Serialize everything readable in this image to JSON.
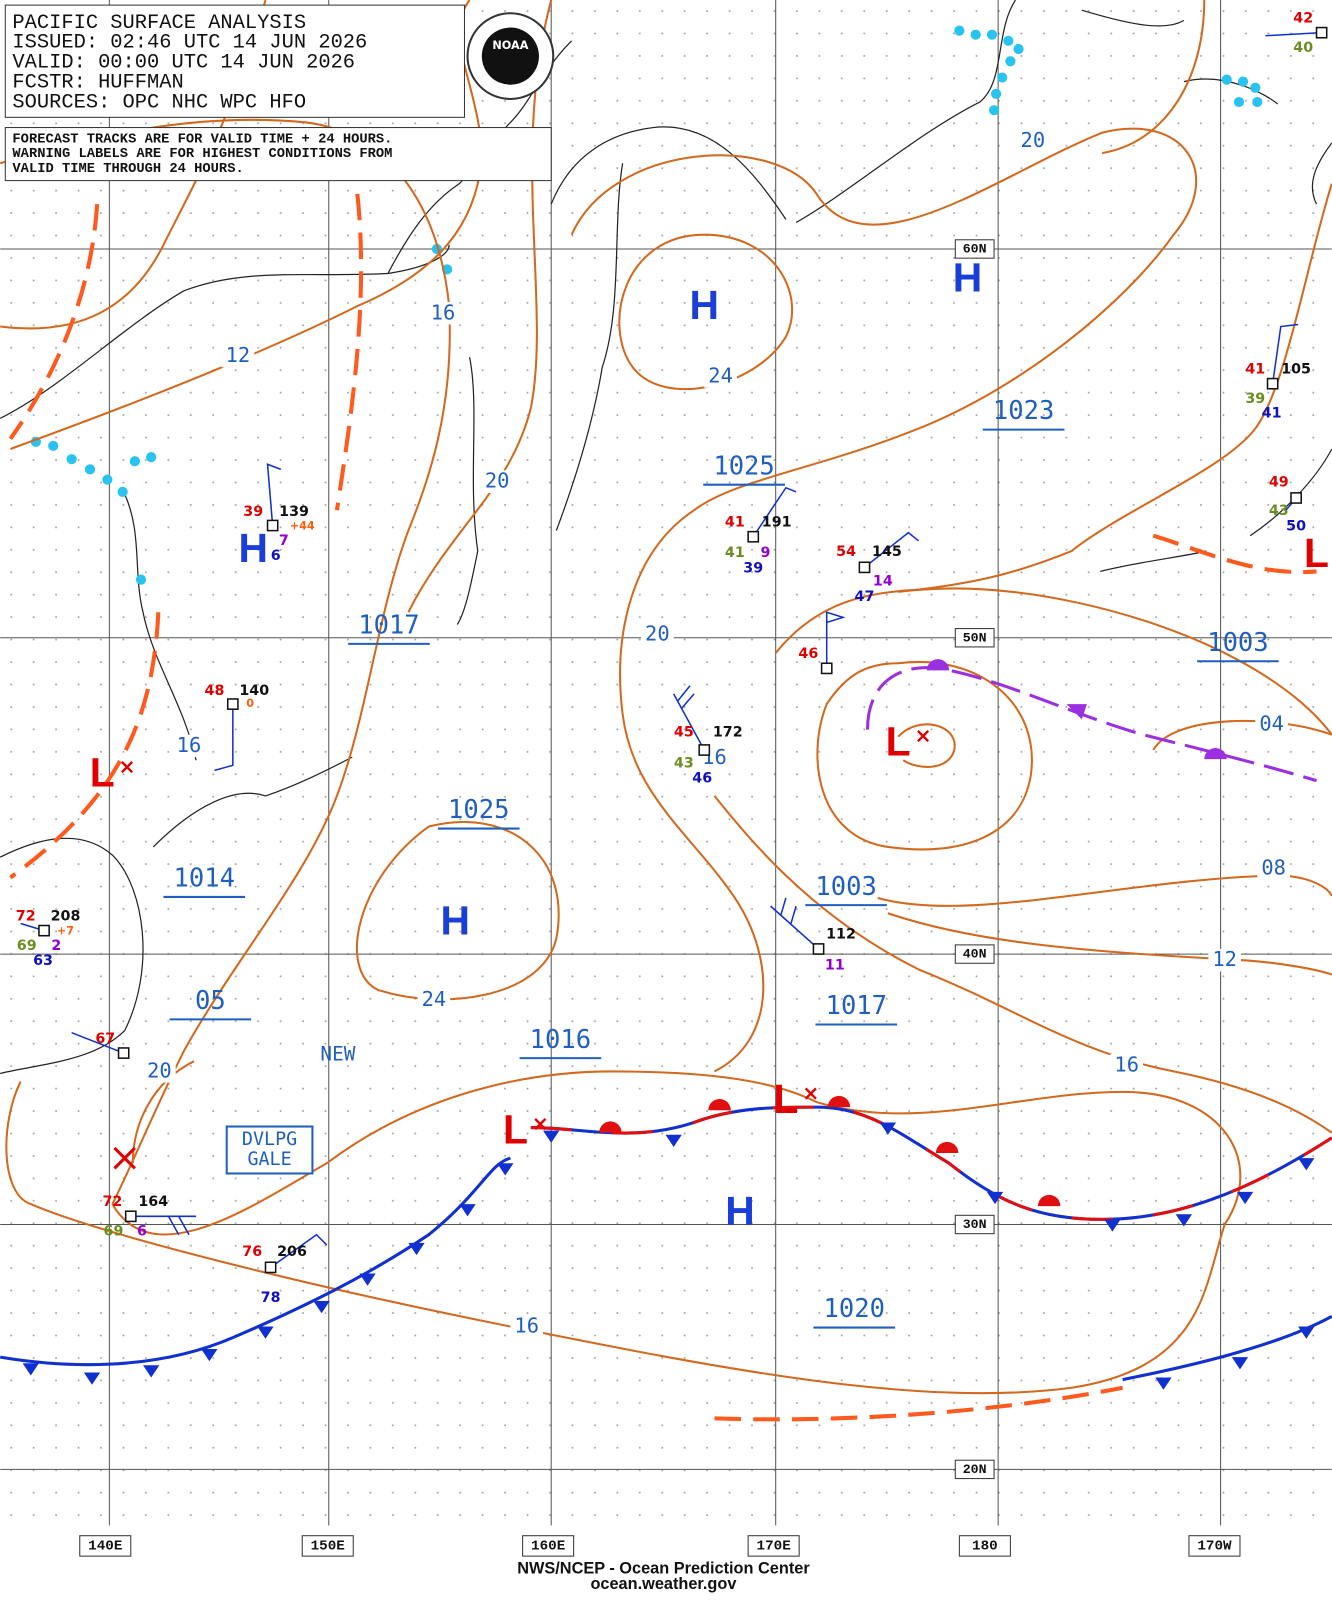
{
  "header": {
    "lines": [
      "PACIFIC SURFACE ANALYSIS",
      "ISSUED: 02:46 UTC 14 JUN 2026",
      "VALID:  00:00 UTC 14 JUN 2026",
      "FCSTR:  HUFFMAN",
      "SOURCES: OPC NHC WPC HFO"
    ]
  },
  "note": {
    "lines": [
      "FORECAST TRACKS ARE FOR VALID TIME + 24 HOURS.",
      "WARNING LABELS ARE FOR HIGHEST CONDITIONS FROM",
      "VALID TIME THROUGH 24 HOURS."
    ]
  },
  "logo": "NOAA",
  "centers": [
    "H",
    "H",
    "H",
    "H",
    "H",
    "L",
    "L",
    "L",
    "L",
    "L"
  ],
  "pressure_labels": [
    "1025",
    "1023",
    "1017",
    "1003",
    "1025",
    "1014",
    "1003",
    "1017",
    "05",
    "1016",
    "1020"
  ],
  "isobar_labels": [
    "20",
    "16",
    "12",
    "24",
    "20",
    "20",
    "16",
    "16",
    "04",
    "08",
    "12",
    "24",
    "16",
    "20",
    "16"
  ],
  "stations": [
    [
      "39",
      "139",
      "+44",
      "7",
      "6"
    ],
    [
      "48",
      "140",
      "0"
    ],
    [
      "72",
      "208",
      "+7",
      "69",
      "2",
      "63"
    ],
    [
      "67"
    ],
    [
      "72",
      "164",
      "69",
      "6"
    ],
    [
      "76",
      "206",
      "78"
    ],
    [
      "41",
      "191",
      "41",
      "9",
      "39"
    ],
    [
      "54",
      "145",
      "14",
      "47"
    ],
    [
      "46"
    ],
    [
      "45",
      "172",
      "43",
      "46"
    ],
    [
      "112",
      "11"
    ],
    [
      "41",
      "105",
      "39",
      "41"
    ],
    [
      "49",
      "43",
      "50"
    ],
    [
      "42",
      "40"
    ]
  ],
  "annotations": {
    "new": "NEW",
    "box": [
      "DVLPG",
      "GALE"
    ]
  },
  "latitude_labels": [
    "60N",
    "50N",
    "40N",
    "30N",
    "20N"
  ],
  "longitude_labels": [
    "140E",
    "150E",
    "160E",
    "170E",
    "180",
    "170W"
  ],
  "footer": [
    "NWS/NCEP - Ocean Prediction Center",
    "ocean.weather.gov"
  ]
}
